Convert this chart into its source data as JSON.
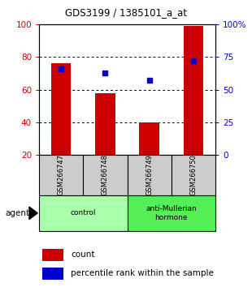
{
  "title": "GDS3199 / 1385101_a_at",
  "samples": [
    "GSM266747",
    "GSM266748",
    "GSM266749",
    "GSM266750"
  ],
  "count_values": [
    76,
    58,
    40,
    99
  ],
  "percentile_values": [
    66,
    63,
    57,
    72
  ],
  "left_ylim": [
    20,
    100
  ],
  "right_ylim": [
    0,
    100
  ],
  "left_yticks": [
    20,
    40,
    60,
    80,
    100
  ],
  "right_yticks": [
    0,
    25,
    50,
    75,
    100
  ],
  "right_yticklabels": [
    "0",
    "25",
    "50",
    "75",
    "100%"
  ],
  "bar_color": "#cc0000",
  "dot_color": "#0000cc",
  "bar_width": 0.45,
  "groups": [
    {
      "label": "control",
      "samples": [
        0,
        1
      ],
      "color": "#aaffaa"
    },
    {
      "label": "anti-Mullerian\nhormone",
      "samples": [
        2,
        3
      ],
      "color": "#55ee55"
    }
  ],
  "agent_label": "agent",
  "legend_count_label": "count",
  "legend_percentile_label": "percentile rank within the sample",
  "bar_color_hex": "#cc0000",
  "dot_color_hex": "#0000cc",
  "left_tick_color": "#cc0000",
  "right_tick_color": "#0000cc",
  "sample_box_color": "#cccccc",
  "fig_width": 3.1,
  "fig_height": 3.54,
  "dpi": 100
}
